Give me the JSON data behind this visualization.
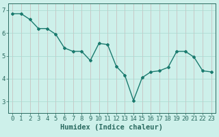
{
  "x": [
    0,
    1,
    2,
    3,
    4,
    5,
    6,
    7,
    8,
    9,
    10,
    11,
    12,
    13,
    14,
    15,
    16,
    17,
    18,
    19,
    20,
    21,
    22,
    23
  ],
  "y": [
    6.85,
    6.85,
    6.6,
    6.2,
    6.2,
    5.95,
    5.35,
    5.2,
    5.2,
    4.8,
    5.55,
    5.5,
    4.55,
    4.15,
    3.05,
    4.05,
    4.3,
    4.35,
    4.5,
    5.2,
    5.2,
    4.95,
    4.35,
    4.3
  ],
  "line_color": "#1a7a6e",
  "marker": "D",
  "marker_size": 2.0,
  "bg_color": "#cdf0ea",
  "grid_color_v": "#c8b8b8",
  "grid_color_h": "#a8d8d0",
  "axis_color": "#2a6a60",
  "xlabel": "Humidex (Indice chaleur)",
  "xlabel_fontsize": 7.5,
  "ylim": [
    2.5,
    7.3
  ],
  "xlim": [
    -0.5,
    23.5
  ],
  "yticks": [
    3,
    4,
    5,
    6,
    7
  ],
  "xticks": [
    0,
    1,
    2,
    3,
    4,
    5,
    6,
    7,
    8,
    9,
    10,
    11,
    12,
    13,
    14,
    15,
    16,
    17,
    18,
    19,
    20,
    21,
    22,
    23
  ],
  "tick_fontsize": 6.5,
  "line_width": 1.0
}
